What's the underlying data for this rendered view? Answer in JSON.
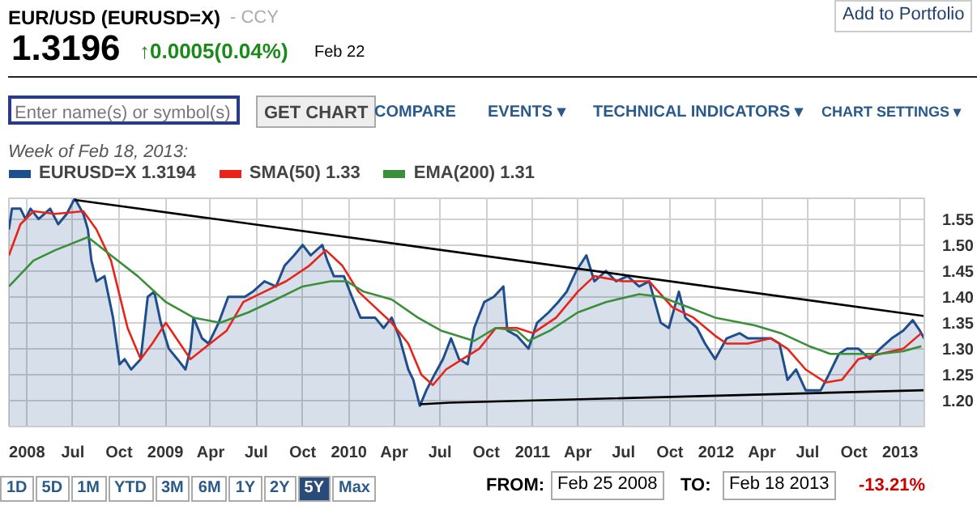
{
  "chart_data": {
    "type": "line",
    "title": "EUR/USD (EURUSD=X)",
    "subtitle": "- CCY",
    "legend_title": "Week of Feb 18, 2013:",
    "annotations": [
      "1.3196",
      "↑0.0005(0.04%)",
      "Feb 22",
      "Add to Portfolio",
      "Enter name(s) or symbol(s)",
      "GET CHART",
      "COMPARE",
      "EVENTS ▾",
      "TECHNICAL INDICATORS ▾",
      "CHART SETTINGS ▾",
      "1D",
      "5D",
      "1M",
      "YTD",
      "3M",
      "6M",
      "1Y",
      "2Y",
      "5Y",
      "Max",
      "FROM:",
      "Feb 25 2008",
      "TO:",
      "Feb 18 2013",
      "-13.21%"
    ],
    "xlim": [
      "2008-02-25",
      "2013-02-18"
    ],
    "ylim": [
      1.15,
      1.59
    ],
    "xticks": [
      {
        "value": "2008-04-01",
        "label": "2008"
      },
      {
        "value": "2008-07-01",
        "label": "Jul"
      },
      {
        "value": "2008-10-01",
        "label": "Oct"
      },
      {
        "value": "2009-01-01",
        "label": "2009"
      },
      {
        "value": "2009-04-01",
        "label": "Apr"
      },
      {
        "value": "2009-07-01",
        "label": "Jul"
      },
      {
        "value": "2009-10-01",
        "label": "Oct"
      },
      {
        "value": "2010-01-01",
        "label": "2010"
      },
      {
        "value": "2010-04-01",
        "label": "Apr"
      },
      {
        "value": "2010-07-01",
        "label": "Jul"
      },
      {
        "value": "2010-10-01",
        "label": "Oct"
      },
      {
        "value": "2011-01-01",
        "label": "2011"
      },
      {
        "value": "2011-04-01",
        "label": "Apr"
      },
      {
        "value": "2011-07-01",
        "label": "Jul"
      },
      {
        "value": "2011-10-01",
        "label": "Oct"
      },
      {
        "value": "2012-01-01",
        "label": "2012"
      },
      {
        "value": "2012-04-01",
        "label": "Apr"
      },
      {
        "value": "2012-07-01",
        "label": "Jul"
      },
      {
        "value": "2012-10-01",
        "label": "Oct"
      },
      {
        "value": "2013-01-01",
        "label": "2013"
      }
    ],
    "yticks": [
      {
        "value": 1.2,
        "label": "1.20"
      },
      1.25,
      {
        "value": 1.3,
        "label": "1.30"
      },
      1.35,
      {
        "value": 1.4,
        "label": "1.40"
      },
      1.45,
      {
        "value": 1.5,
        "label": "1.50"
      },
      1.55
    ],
    "grid": true,
    "legend": "top",
    "line_style": "solid",
    "series": [
      {
        "name": "EURUSD=X 1.3194",
        "type": "area",
        "color": "#1f4e8c",
        "x": [
          "2008-02-25",
          "2008-03-02",
          "2008-03-19",
          "2008-03-29",
          "2008-04-08",
          "2008-04-24",
          "2008-05-17",
          "2008-06-02",
          "2008-06-19",
          "2008-07-05",
          "2008-07-22",
          "2008-07-31",
          "2008-08-07",
          "2008-08-17",
          "2008-09-02",
          "2008-09-19",
          "2008-10-02",
          "2008-10-12",
          "2008-10-25",
          "2008-11-13",
          "2008-11-27",
          "2008-12-10",
          "2008-12-23",
          "2009-01-08",
          "2009-01-25",
          "2009-02-10",
          "2009-02-20",
          "2009-02-26",
          "2009-03-15",
          "2009-03-28",
          "2009-04-17",
          "2009-05-06",
          "2009-05-23",
          "2009-06-08",
          "2009-06-24",
          "2009-07-17",
          "2009-08-09",
          "2009-08-26",
          "2009-09-14",
          "2009-10-01",
          "2009-10-17",
          "2009-11-09",
          "2009-11-19",
          "2009-12-02",
          "2009-12-22",
          "2010-01-07",
          "2010-01-24",
          "2010-02-22",
          "2010-03-11",
          "2010-03-27",
          "2010-04-12",
          "2010-04-29",
          "2010-05-09",
          "2010-05-22",
          "2010-06-04",
          "2010-06-20",
          "2010-07-07",
          "2010-07-23",
          "2010-08-08",
          "2010-08-25",
          "2010-09-07",
          "2010-09-27",
          "2010-10-16",
          "2010-11-04",
          "2010-11-12",
          "2010-12-01",
          "2010-12-24",
          "2011-01-10",
          "2011-02-02",
          "2011-02-21",
          "2011-03-10",
          "2011-03-29",
          "2011-04-18",
          "2011-05-04",
          "2011-05-27",
          "2011-06-16",
          "2011-07-09",
          "2011-08-01",
          "2011-08-21",
          "2011-09-13",
          "2011-09-29",
          "2011-10-19",
          "2011-11-01",
          "2011-11-24",
          "2011-12-10",
          "2011-12-30",
          "2012-01-22",
          "2012-02-17",
          "2012-03-04",
          "2012-03-27",
          "2012-04-19",
          "2012-05-06",
          "2012-05-22",
          "2012-06-08",
          "2012-06-27",
          "2012-07-27",
          "2012-08-12",
          "2012-09-01",
          "2012-09-17",
          "2012-10-10",
          "2012-11-02",
          "2012-11-22",
          "2012-12-15",
          "2013-01-07",
          "2013-01-26",
          "2013-02-09",
          "2013-02-18"
        ],
        "values": [
          1.53,
          1.57,
          1.57,
          1.55,
          1.57,
          1.55,
          1.57,
          1.54,
          1.56,
          1.59,
          1.56,
          1.53,
          1.47,
          1.43,
          1.44,
          1.36,
          1.27,
          1.28,
          1.26,
          1.28,
          1.4,
          1.41,
          1.35,
          1.3,
          1.28,
          1.26,
          1.3,
          1.36,
          1.32,
          1.31,
          1.35,
          1.4,
          1.4,
          1.4,
          1.41,
          1.43,
          1.42,
          1.46,
          1.48,
          1.5,
          1.48,
          1.5,
          1.47,
          1.44,
          1.44,
          1.4,
          1.36,
          1.36,
          1.34,
          1.36,
          1.32,
          1.26,
          1.24,
          1.19,
          1.22,
          1.25,
          1.28,
          1.32,
          1.28,
          1.27,
          1.34,
          1.39,
          1.4,
          1.42,
          1.335,
          1.325,
          1.3,
          1.35,
          1.37,
          1.39,
          1.41,
          1.45,
          1.48,
          1.43,
          1.45,
          1.43,
          1.44,
          1.42,
          1.43,
          1.35,
          1.34,
          1.41,
          1.36,
          1.34,
          1.31,
          1.28,
          1.32,
          1.33,
          1.32,
          1.32,
          1.32,
          1.31,
          1.24,
          1.26,
          1.22,
          1.22,
          1.25,
          1.29,
          1.3,
          1.3,
          1.28,
          1.3,
          1.32,
          1.335,
          1.355,
          1.335,
          1.3194
        ]
      },
      {
        "name": "SMA(50) 1.33",
        "color": "#e8231a",
        "x": [
          "2008-02-25",
          "2008-03-19",
          "2008-04-14",
          "2008-05-27",
          "2008-07-22",
          "2008-08-17",
          "2008-09-15",
          "2008-10-18",
          "2008-11-13",
          "2008-12-06",
          "2009-01-02",
          "2009-02-20",
          "2009-03-31",
          "2009-05-03",
          "2009-06-05",
          "2009-07-17",
          "2009-08-29",
          "2009-10-14",
          "2009-11-16",
          "2009-12-19",
          "2010-01-20",
          "2010-02-22",
          "2010-03-27",
          "2010-04-29",
          "2010-05-25",
          "2010-06-17",
          "2010-07-13",
          "2010-08-15",
          "2010-09-17",
          "2010-10-20",
          "2010-12-01",
          "2011-01-02",
          "2011-02-17",
          "2011-04-01",
          "2011-05-04",
          "2011-06-29",
          "2011-08-21",
          "2011-10-06",
          "2011-11-17",
          "2011-12-30",
          "2012-01-22",
          "2012-03-04",
          "2012-04-19",
          "2012-05-22",
          "2012-06-27",
          "2012-08-06",
          "2012-09-07",
          "2012-10-10",
          "2012-11-22",
          "2013-01-07",
          "2013-02-12"
        ],
        "values": [
          1.48,
          1.54,
          1.565,
          1.56,
          1.565,
          1.53,
          1.47,
          1.34,
          1.28,
          1.31,
          1.35,
          1.28,
          1.31,
          1.335,
          1.39,
          1.41,
          1.43,
          1.46,
          1.49,
          1.46,
          1.41,
          1.38,
          1.35,
          1.31,
          1.25,
          1.23,
          1.26,
          1.28,
          1.3,
          1.34,
          1.34,
          1.33,
          1.36,
          1.41,
          1.44,
          1.43,
          1.43,
          1.38,
          1.36,
          1.325,
          1.31,
          1.31,
          1.32,
          1.3,
          1.26,
          1.235,
          1.24,
          1.28,
          1.29,
          1.3,
          1.33
        ]
      },
      {
        "name": "EMA(200) 1.31",
        "color": "#3a8f3a",
        "x": [
          "2008-02-25",
          "2008-04-14",
          "2008-05-27",
          "2008-07-31",
          "2008-09-15",
          "2008-11-07",
          "2009-01-02",
          "2009-02-26",
          "2009-04-20",
          "2009-06-15",
          "2009-08-09",
          "2009-10-01",
          "2009-11-26",
          "2009-12-28",
          "2010-01-30",
          "2010-03-27",
          "2010-05-18",
          "2010-07-03",
          "2010-09-07",
          "2010-10-20",
          "2010-12-01",
          "2010-12-24",
          "2011-02-05",
          "2011-04-01",
          "2011-05-27",
          "2011-08-01",
          "2011-09-13",
          "2011-11-07",
          "2011-12-30",
          "2012-03-18",
          "2012-05-09",
          "2012-07-04",
          "2012-08-15",
          "2012-10-10",
          "2012-11-22",
          "2013-01-07",
          "2013-02-12"
        ],
        "values": [
          1.42,
          1.47,
          1.49,
          1.515,
          1.48,
          1.44,
          1.39,
          1.36,
          1.35,
          1.37,
          1.395,
          1.42,
          1.43,
          1.43,
          1.41,
          1.395,
          1.36,
          1.335,
          1.315,
          1.34,
          1.335,
          1.315,
          1.335,
          1.37,
          1.39,
          1.405,
          1.4,
          1.38,
          1.36,
          1.345,
          1.33,
          1.305,
          1.29,
          1.29,
          1.29,
          1.295,
          1.305
        ]
      },
      {
        "color": "#000000",
        "x": [
          "2008-07-05",
          "2013-02-18"
        ],
        "values": [
          1.587,
          1.363
        ]
      },
      {
        "color": "#000000",
        "x": [
          "2010-05-22",
          "2010-07-20",
          "2013-02-18"
        ],
        "values": [
          1.193,
          1.196,
          1.22
        ]
      }
    ]
  }
}
